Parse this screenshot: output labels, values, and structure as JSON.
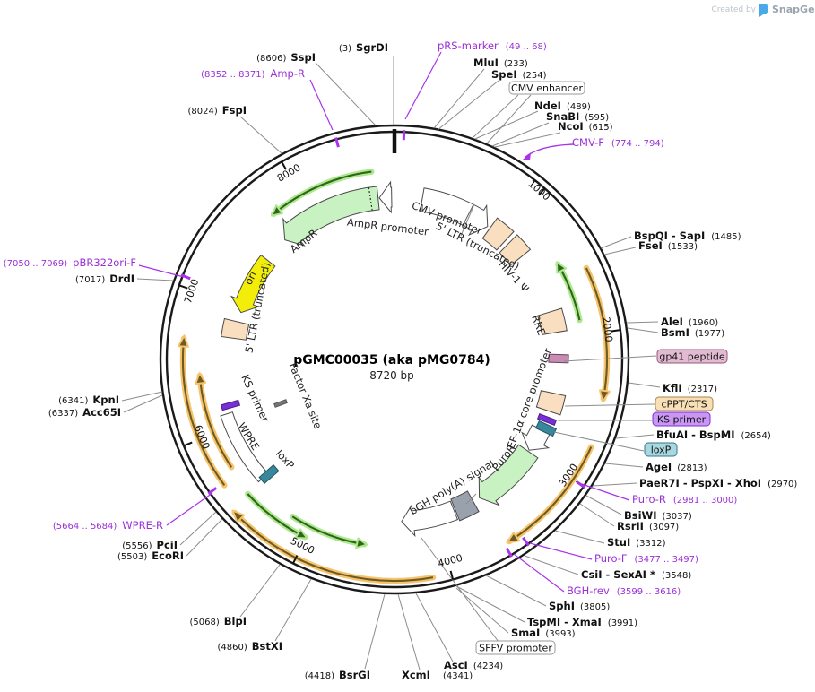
{
  "watermark": {
    "created_by": "Created by",
    "brand": "SnapGene"
  },
  "plasmid": {
    "title": "pGMC00035 (aka pMG0784)",
    "size": "8720 bp"
  },
  "ticks": [
    "1000",
    "2000",
    "3000",
    "4000",
    "5000",
    "6000",
    "7000",
    "8000"
  ],
  "colors": {
    "ring": "#1a1a1a",
    "leader": "#8c8c8c",
    "primer_purple": "#9b2fd6",
    "primer_tick": "#a833ea",
    "peach": "#f9dfbf",
    "pale_green": "#c9f2c2",
    "yellow": "#f2ee0a",
    "gray_box": "#99a1ad",
    "mauve": "#c78cb2",
    "teal": "#38879b",
    "purple_feature": "#7a2fd6",
    "orange_halo": "#f6c46c",
    "orange_core": "#6e5a22",
    "green_halo": "#ade98c",
    "green_core": "#2f641d",
    "feature_outline": "#4a4a4a",
    "white": "#ffffff"
  },
  "labels": {
    "sgrdi": {
      "num": "(3)",
      "name": "SgrDI"
    },
    "sspi": {
      "num": "(8606)",
      "name": "SspI"
    },
    "fspi": {
      "num": "(8024)",
      "name": "FspI"
    },
    "mlui": {
      "name": "MluI",
      "num": "(233)"
    },
    "spei": {
      "name": "SpeI",
      "num": "(254)"
    },
    "ndei": {
      "name": "NdeI",
      "num": "(489)"
    },
    "snabi": {
      "name": "SnaBI",
      "num": "(595)"
    },
    "ncoi": {
      "name": "NcoI",
      "num": "(615)"
    },
    "bspqi": {
      "name": "BspQI - SapI",
      "num": "(1485)"
    },
    "fsei": {
      "name": "FseI",
      "num": "(1533)"
    },
    "alei": {
      "name": "AleI",
      "num": "(1960)"
    },
    "bsmi": {
      "name": "BsmI",
      "num": "(1977)"
    },
    "kfli": {
      "name": "KflI",
      "num": "(2317)"
    },
    "bfuai": {
      "name": "BfuAI - BspMI",
      "num": "(2654)"
    },
    "agei": {
      "name": "AgeI",
      "num": "(2813)"
    },
    "paer7i": {
      "name": "PaeR7I - PspXI - XhoI",
      "num": "(2970)"
    },
    "bsiwi": {
      "name": "BsiWI",
      "num": "(3037)"
    },
    "rsrii": {
      "name": "RsrII",
      "num": "(3097)"
    },
    "stui": {
      "name": "StuI",
      "num": "(3312)"
    },
    "csii": {
      "name": "CsiI - SexAI *",
      "num": "(3548)"
    },
    "sphi": {
      "name": "SphI",
      "num": "(3805)"
    },
    "tspmi": {
      "name": "TspMI - XmaI",
      "num": "(3991)"
    },
    "smai": {
      "name": "SmaI",
      "num": "(3993)"
    },
    "asci": {
      "name": "AscI",
      "num": "(4234)"
    },
    "xcmi": {
      "name": "XcmI",
      "num": "(4341)"
    },
    "bsrgi": {
      "num": "(4418)",
      "name": "BsrGI"
    },
    "bstxi": {
      "num": "(4860)",
      "name": "BstXI"
    },
    "blpi": {
      "num": "(5068)",
      "name": "BlpI"
    },
    "ecori": {
      "num": "(5503)",
      "name": "EcoRI"
    },
    "pcii": {
      "num": "(5556)",
      "name": "PciI"
    },
    "acc65i": {
      "num": "(6337)",
      "name": "Acc65I"
    },
    "kpni": {
      "num": "(6341)",
      "name": "KpnI"
    },
    "drdi": {
      "num": "(7017)",
      "name": "DrdI"
    }
  },
  "primers": {
    "prs": {
      "name": "pRS-marker",
      "num": "(49 .. 68)"
    },
    "cmvf": {
      "name": "CMV-F",
      "num": "(774 .. 794)"
    },
    "puror": {
      "name": "Puro-R",
      "num": "(2981 .. 3000)"
    },
    "purof": {
      "name": "Puro-F",
      "num": "(3477 .. 3497)"
    },
    "bghrev": {
      "name": "BGH-rev",
      "num": "(3599 .. 3616)"
    },
    "wprer": {
      "num": "(5664 .. 5684)",
      "name": "WPRE-R"
    },
    "pbr": {
      "num": "(7050 .. 7069)",
      "name": "pBR322ori-F"
    },
    "ampr": {
      "num": "(8352 .. 8371)",
      "name": "Amp-R"
    }
  },
  "boxed": {
    "cmv_enhancer": "CMV enhancer",
    "gp41": "gp41 peptide",
    "cppt": "cPPT/CTS",
    "ks_primer": "KS primer",
    "loxp": "loxP",
    "sffv": "SFFV promoter"
  },
  "inner": {
    "cmv_promoter": "CMV promoter",
    "ltr5_right": "5' LTR (truncated)",
    "hiv_psi": "HIV-1 Ψ",
    "rre": "RRE",
    "ef1a": "EF-1α core promoter",
    "puror": "PuroR",
    "bgh": "bGH poly(A) signal",
    "wpre": "WPRE",
    "ks_primer_left": "KS primer",
    "loxp_left": "loxP",
    "factor_xa": "Factor Xa site",
    "ori": "ori",
    "ampr": "AmpR",
    "ampr_promoter": "AmpR promoter",
    "ltr5_left": "5' LTR (truncated)"
  }
}
